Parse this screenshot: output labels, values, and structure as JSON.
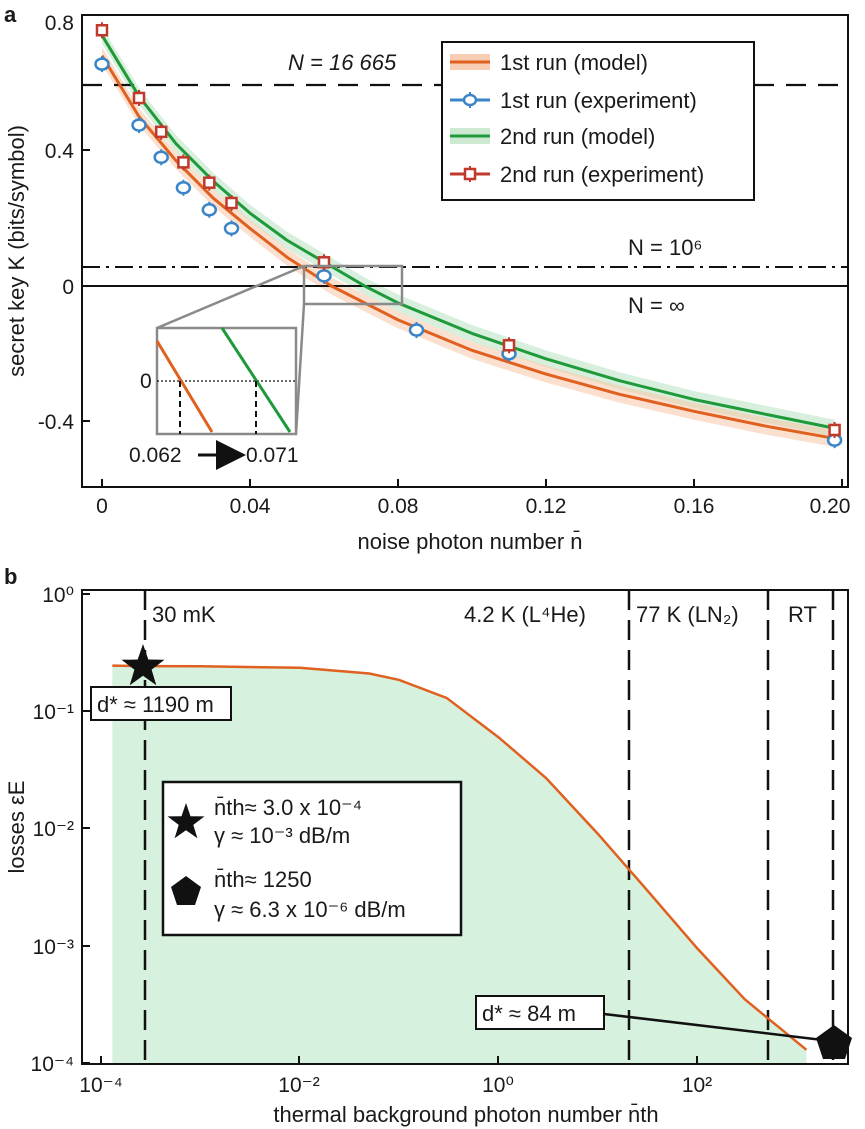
{
  "panel_a": {
    "letter": "a",
    "xlabel": "noise photon number n̄",
    "ylabel": "secret key K (bits/symbol)",
    "xticks": [
      "0",
      "0.04",
      "0.08",
      "0.12",
      "0.16",
      "0.20"
    ],
    "yticks": [
      "0.8",
      "0.4",
      "0",
      "-0.4"
    ],
    "annotations": {
      "n_16665": "N = 16 665",
      "n_1e6": "N = 10⁶",
      "n_inf": "N = ∞"
    },
    "inset": {
      "zero_label": "0",
      "left_value": "0.062",
      "right_value": "0.071"
    },
    "legend": [
      {
        "label": "1st run (model)",
        "color": "#e06020"
      },
      {
        "label": "1st run (experiment)",
        "color": "#3a85c7"
      },
      {
        "label": "2nd run (model)",
        "color": "#1f9a3a"
      },
      {
        "label": "2nd run (experiment)",
        "color": "#c0392b"
      }
    ]
  },
  "panel_b": {
    "letter": "b",
    "xlabel": "thermal background photon number n̄th",
    "ylabel": "losses εE",
    "xticks": [
      "10⁻⁴",
      "10⁻²",
      "10⁰",
      "10²"
    ],
    "yticks": [
      "10⁰",
      "10⁻¹",
      "10⁻²",
      "10⁻³",
      "10⁻⁴"
    ],
    "temps": [
      "30 mK",
      "4.2 K (L⁴He)",
      "77 K (LN₂)",
      "RT"
    ],
    "d_star_1": "d* ≈ 1190 m",
    "d_star_2": "d* ≈ 84 m",
    "legend_star_line1": "n̄th≈ 3.0 x 10⁻⁴",
    "legend_star_line2": "γ  ≈ 10⁻³ dB/m",
    "legend_pent_line1": "n̄th≈ 1250",
    "legend_pent_line2": "γ  ≈ 6.3 x 10⁻⁶ dB/m",
    "curve_color": "#e06020",
    "fill_color": "#d6f1dd"
  },
  "chart_data": [
    {
      "type": "line",
      "xlabel": "noise photon number n̄",
      "ylabel": "secret key K (bits/symbol)",
      "xlim": [
        -0.006,
        0.2
      ],
      "ylim": [
        -0.6,
        0.8
      ],
      "hlines": [
        {
          "label": "N = 16 665",
          "y": 0.6
        },
        {
          "label": "N = 10⁶",
          "y": 0.06
        },
        {
          "label": "N = ∞",
          "y": 0
        }
      ],
      "series": [
        {
          "name": "1st run (experiment)",
          "x": [
            0,
            0.01,
            0.016,
            0.022,
            0.029,
            0.035,
            0.06,
            0.085,
            0.11,
            0.198
          ],
          "y": [
            0.655,
            0.475,
            0.38,
            0.29,
            0.225,
            0.17,
            0.03,
            -0.13,
            -0.2,
            -0.455
          ]
        },
        {
          "name": "2nd run (experiment)",
          "x": [
            0,
            0.01,
            0.016,
            0.022,
            0.029,
            0.035,
            0.06,
            0.11,
            0.198
          ],
          "y": [
            0.755,
            0.555,
            0.455,
            0.365,
            0.305,
            0.245,
            0.07,
            -0.175,
            -0.425
          ]
        },
        {
          "name": "1st run (model)",
          "x": [
            0,
            0.01,
            0.02,
            0.03,
            0.04,
            0.05,
            0.062,
            0.08,
            0.1,
            0.12,
            0.14,
            0.16,
            0.18,
            0.198
          ],
          "y": [
            0.68,
            0.5,
            0.37,
            0.26,
            0.17,
            0.085,
            0,
            -0.1,
            -0.19,
            -0.26,
            -0.32,
            -0.37,
            -0.415,
            -0.45
          ]
        },
        {
          "name": "2nd run (model)",
          "x": [
            0,
            0.01,
            0.02,
            0.03,
            0.04,
            0.05,
            0.071,
            0.08,
            0.1,
            0.12,
            0.14,
            0.16,
            0.18,
            0.198
          ],
          "y": [
            0.74,
            0.56,
            0.42,
            0.31,
            0.215,
            0.135,
            0,
            -0.05,
            -0.14,
            -0.215,
            -0.28,
            -0.335,
            -0.38,
            -0.42
          ]
        }
      ],
      "inset_crossings": [
        0.062,
        0.071
      ]
    },
    {
      "type": "area",
      "xlabel": "thermal background photon number n̄th",
      "ylabel": "losses εE",
      "xscale": "log",
      "yscale": "log",
      "xlim": [
        0.0001,
        2000
      ],
      "ylim": [
        0.0001,
        1
      ],
      "series": [
        {
          "name": "",
          "x": [
            0.00013,
            0.0003,
            0.001,
            0.01,
            0.05,
            0.1,
            0.3,
            1,
            3,
            10,
            30,
            100,
            300,
            1250
          ],
          "y": [
            0.245,
            0.243,
            0.242,
            0.235,
            0.21,
            0.185,
            0.13,
            0.06,
            0.027,
            0.009,
            0.0031,
            0.00095,
            0.00035,
            0.00013
          ]
        }
      ],
      "vlines": [
        {
          "label": "30 mK",
          "x": 0.0003
        },
        {
          "label": "4.2 K (L⁴He)",
          "x": 15
        },
        {
          "label": "77 K (LN₂)",
          "x": 350
        },
        {
          "label": "RT",
          "x": 1250
        }
      ],
      "markers": [
        {
          "shape": "star",
          "x": 0.0003,
          "y": 0.245,
          "label": "d* ≈ 1190 m"
        },
        {
          "shape": "pentagon",
          "x": 1250,
          "y": 0.00013,
          "label": "d* ≈ 84 m"
        }
      ]
    }
  ]
}
